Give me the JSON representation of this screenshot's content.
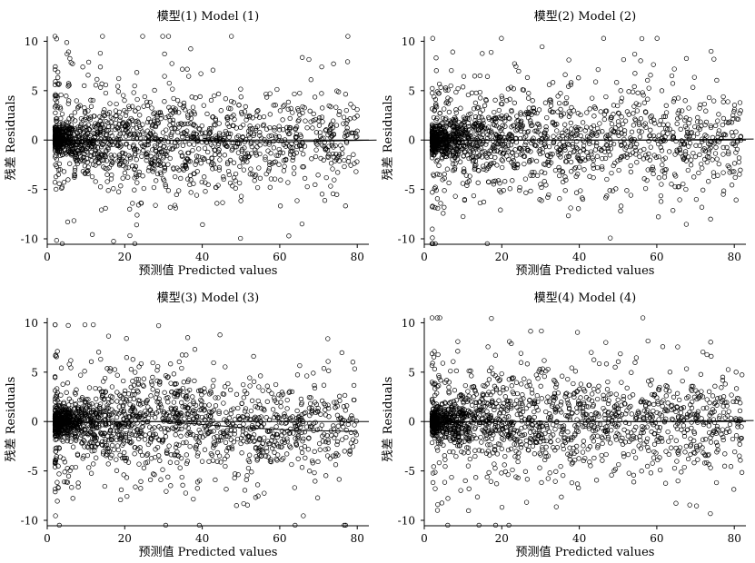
{
  "chart_data": [
    {
      "type": "scatter",
      "title": "模型(1) Model (1)",
      "xlabel": "预测值 Predicted values",
      "ylabel": "残差 Residuals",
      "xlim": [
        0,
        83
      ],
      "ylim": [
        -10,
        10.5
      ],
      "xticks": [
        "0",
        "20",
        "40",
        "60",
        "80"
      ],
      "yticks": [
        "10",
        "5",
        "0",
        "-5",
        "-10"
      ],
      "grid": false,
      "legend": "none",
      "marker": "open-circle",
      "fit_line": [
        [
          2,
          -0.1
        ],
        [
          10,
          0.0
        ],
        [
          25,
          0.0
        ],
        [
          45,
          -0.1
        ],
        [
          60,
          -0.2
        ],
        [
          85,
          0.0
        ]
      ],
      "points": {
        "n": 1600,
        "x_range": [
          2,
          80
        ],
        "y_range": [
          -10.5,
          10.5
        ],
        "seed": 11
      }
    },
    {
      "type": "scatter",
      "title": "模型(2) Model (2)",
      "xlabel": "预测值 Predicted values",
      "ylabel": "残差 Residuals",
      "xlim": [
        0,
        83
      ],
      "ylim": [
        -10,
        10.5
      ],
      "xticks": [
        "0",
        "20",
        "40",
        "60",
        "80"
      ],
      "yticks": [
        "10",
        "5",
        "0",
        "-5",
        "-10"
      ],
      "grid": false,
      "legend": "none",
      "marker": "open-circle",
      "fit_line": [
        [
          2,
          -0.1
        ],
        [
          20,
          0.0
        ],
        [
          40,
          0.0
        ],
        [
          60,
          0.0
        ],
        [
          85,
          0.1
        ]
      ],
      "points": {
        "n": 1600,
        "x_range": [
          2,
          82
        ],
        "y_range": [
          -10.5,
          10.3
        ],
        "seed": 22
      }
    },
    {
      "type": "scatter",
      "title": "模型(3) Model (3)",
      "xlabel": "预测值 Predicted values",
      "ylabel": "残差 Residuals",
      "xlim": [
        0,
        83
      ],
      "ylim": [
        -10,
        10.5
      ],
      "xticks": [
        "0",
        "20",
        "40",
        "60",
        "80"
      ],
      "yticks": [
        "10",
        "5",
        "0",
        "-5",
        "-10"
      ],
      "grid": false,
      "legend": "none",
      "marker": "open-circle",
      "fit_line": [
        [
          2,
          -0.3
        ],
        [
          15,
          0.0
        ],
        [
          30,
          0.0
        ],
        [
          50,
          -0.6
        ],
        [
          65,
          -0.9
        ],
        [
          80,
          -1.0
        ]
      ],
      "points": {
        "n": 1700,
        "x_range": [
          2,
          80
        ],
        "y_range": [
          -10.5,
          9.8
        ],
        "seed": 33
      }
    },
    {
      "type": "scatter",
      "title": "模型(4) Model (4)",
      "xlabel": "预测值 Predicted values",
      "ylabel": "残差 Residuals",
      "xlim": [
        0,
        83
      ],
      "ylim": [
        -10,
        10.5
      ],
      "xticks": [
        "0",
        "20",
        "40",
        "60",
        "80"
      ],
      "yticks": [
        "10",
        "5",
        "0",
        "-5",
        "-10"
      ],
      "grid": false,
      "legend": "none",
      "marker": "open-circle",
      "fit_line": [
        [
          2,
          -0.1
        ],
        [
          20,
          0.0
        ],
        [
          40,
          0.0
        ],
        [
          60,
          0.0
        ],
        [
          85,
          0.1
        ]
      ],
      "points": {
        "n": 1600,
        "x_range": [
          2,
          82
        ],
        "y_range": [
          -10.5,
          10.5
        ],
        "seed": 44
      }
    }
  ]
}
